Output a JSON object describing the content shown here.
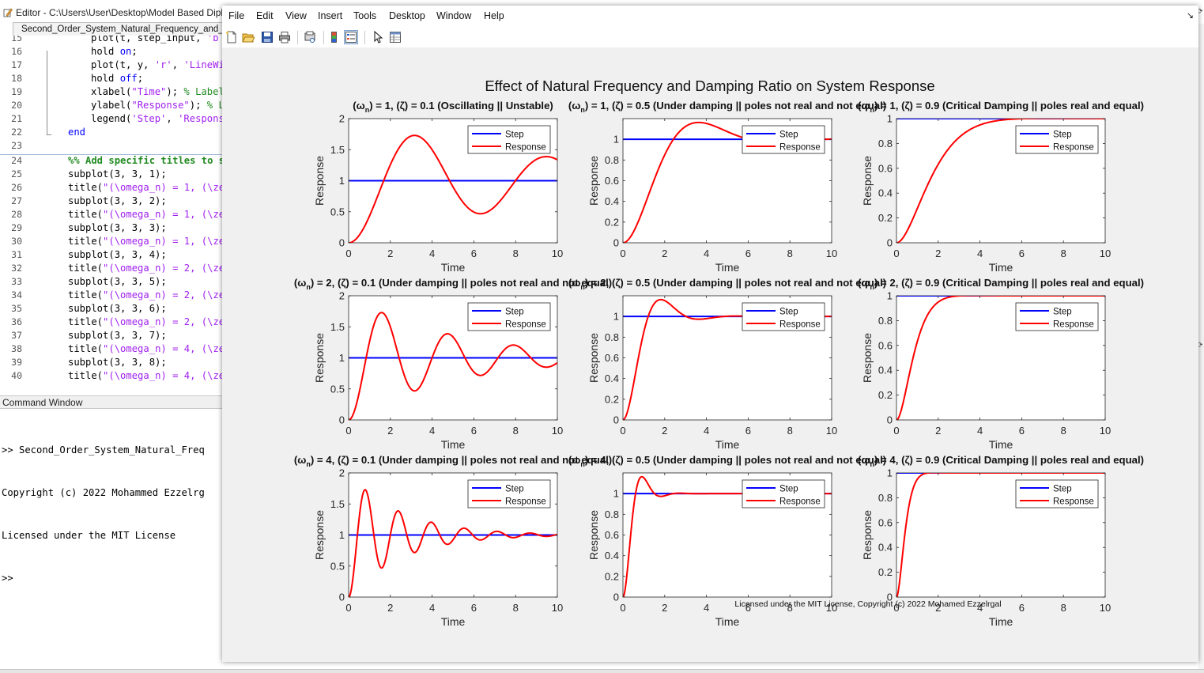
{
  "editor": {
    "title": "Editor - C:\\Users\\User\\Desktop\\Model Based Dipl",
    "tab": "Second_Order_System_Natural_Frequency_and_",
    "lines": [
      {
        "n": "15",
        "text": "plot(t, step_input, 'b"
      },
      {
        "n": "16",
        "text": "hold on;"
      },
      {
        "n": "17",
        "text": "plot(t, y, 'r', 'LineWi"
      },
      {
        "n": "18",
        "text": "hold off;"
      },
      {
        "n": "19",
        "text": "xlabel(\"Time\"); % Label"
      },
      {
        "n": "20",
        "text": "ylabel(\"Response\"); % L"
      },
      {
        "n": "21",
        "text": "legend('Step', 'Respons"
      },
      {
        "n": "22",
        "text": "end"
      },
      {
        "n": "23",
        "text": ""
      },
      {
        "n": "24",
        "text": "%% Add specific titles to s"
      },
      {
        "n": "25",
        "text": "subplot(3, 3, 1);"
      },
      {
        "n": "26",
        "text": "title(\"(\\omega_n) = 1, (\\ze"
      },
      {
        "n": "27",
        "text": "subplot(3, 3, 2);"
      },
      {
        "n": "28",
        "text": "title(\"(\\omega_n) = 1, (\\ze"
      },
      {
        "n": "29",
        "text": "subplot(3, 3, 3);"
      },
      {
        "n": "30",
        "text": "title(\"(\\omega_n) = 1, (\\ze"
      },
      {
        "n": "31",
        "text": "subplot(3, 3, 4);"
      },
      {
        "n": "32",
        "text": "title(\"(\\omega_n) = 2, (\\ze"
      },
      {
        "n": "33",
        "text": "subplot(3, 3, 5);"
      },
      {
        "n": "34",
        "text": "title(\"(\\omega_n) = 2, (\\ze"
      },
      {
        "n": "35",
        "text": "subplot(3, 3, 6);"
      },
      {
        "n": "36",
        "text": "title(\"(\\omega_n) = 2, (\\ze"
      },
      {
        "n": "37",
        "text": "subplot(3, 3, 7);"
      },
      {
        "n": "38",
        "text": "title(\"(\\omega_n) = 4, (\\ze"
      },
      {
        "n": "39",
        "text": "subplot(3, 3, 8);"
      },
      {
        "n": "40",
        "text": "title(\"(\\omega_n) = 4, (\\ze"
      }
    ],
    "command_window": {
      "header": "Command Window",
      "lines": [
        ">> Second_Order_System_Natural_Freq",
        "Copyright (c) 2022 Mohammed Ezzelrg",
        "Licensed under the MIT License",
        ">>"
      ]
    }
  },
  "figure": {
    "menu": [
      "File",
      "Edit",
      "View",
      "Insert",
      "Tools",
      "Desktop",
      "Window",
      "Help"
    ],
    "toolbar": [
      "new-figure-icon",
      "open-file-icon",
      "save-icon",
      "print-icon",
      "print-preview-icon",
      "colorbar-icon",
      "legend-icon",
      "pointer-icon",
      "property-inspector-icon"
    ],
    "suptitle": "Effect of Natural Frequency and Damping Ratio on System Response",
    "footer": "Licensed under the MIT License, Copyright (c) 2022 Mohamed Ezzelrgal",
    "colors": {
      "step": "#0000ff",
      "response": "#ff0000",
      "canvas": "#f0f0f0"
    }
  },
  "chart_data": [
    {
      "type": "line",
      "title": "(ω_n) = 1, (ζ) = 0.1 (Oscillating || Unstable)",
      "wn": 1,
      "zeta": 0.1,
      "xlabel": "Time",
      "ylabel": "Response",
      "xlim": [
        0,
        10
      ],
      "ylim": [
        0,
        2
      ],
      "xticks": [
        0,
        2,
        4,
        6,
        8,
        10
      ],
      "yticks": [
        "0",
        "0.5",
        "1",
        "1.5",
        "2"
      ],
      "legend": [
        "Step",
        "Response"
      ],
      "legend_position": "top-right"
    },
    {
      "type": "line",
      "title": "(ω_n) = 1, (ζ) = 0.5 (Under damping || poles not real and not equal)",
      "wn": 1,
      "zeta": 0.5,
      "xlabel": "Time",
      "ylabel": "Response",
      "xlim": [
        0,
        10
      ],
      "ylim": [
        0,
        1.2
      ],
      "xticks": [
        0,
        2,
        4,
        6,
        8,
        10
      ],
      "yticks": [
        "0",
        "0.2",
        "0.4",
        "0.6",
        "0.8",
        "1"
      ],
      "legend": [
        "Step",
        "Response"
      ],
      "legend_position": "top-right"
    },
    {
      "type": "line",
      "title": "(ω_n) = 1, (ζ) = 0.9 (Critical Damping || poles real and equal)",
      "wn": 1,
      "zeta": 0.9,
      "xlabel": "Time",
      "ylabel": "Response",
      "xlim": [
        0,
        10
      ],
      "ylim": [
        0,
        1
      ],
      "xticks": [
        0,
        2,
        4,
        6,
        8,
        10
      ],
      "yticks": [
        "0",
        "0.2",
        "0.4",
        "0.6",
        "0.8",
        "1"
      ],
      "legend": [
        "Step",
        "Response"
      ],
      "legend_position": "top-right"
    },
    {
      "type": "line",
      "title": "(ω_n) = 2, (ζ) = 0.1 (Under damping || poles not real and not equal)",
      "wn": 2,
      "zeta": 0.1,
      "xlabel": "Time",
      "ylabel": "Response",
      "xlim": [
        0,
        10
      ],
      "ylim": [
        0,
        2
      ],
      "xticks": [
        0,
        2,
        4,
        6,
        8,
        10
      ],
      "yticks": [
        "0",
        "0.5",
        "1",
        "1.5",
        "2"
      ],
      "legend": [
        "Step",
        "Response"
      ],
      "legend_position": "top-right"
    },
    {
      "type": "line",
      "title": "(ω_n) = 2, (ζ) = 0.5 (Under damping || poles not real and not equal)",
      "wn": 2,
      "zeta": 0.5,
      "xlabel": "Time",
      "ylabel": "Response",
      "xlim": [
        0,
        10
      ],
      "ylim": [
        0,
        1.2
      ],
      "xticks": [
        0,
        2,
        4,
        6,
        8,
        10
      ],
      "yticks": [
        "0",
        "0.2",
        "0.4",
        "0.6",
        "0.8",
        "1"
      ],
      "legend": [
        "Step",
        "Response"
      ],
      "legend_position": "top-right"
    },
    {
      "type": "line",
      "title": "(ω_n) = 2, (ζ) = 0.9 (Critical Damping || poles real and equal)",
      "wn": 2,
      "zeta": 0.9,
      "xlabel": "Time",
      "ylabel": "Response",
      "xlim": [
        0,
        10
      ],
      "ylim": [
        0,
        1
      ],
      "xticks": [
        0,
        2,
        4,
        6,
        8,
        10
      ],
      "yticks": [
        "0",
        "0.2",
        "0.4",
        "0.6",
        "0.8",
        "1"
      ],
      "legend": [
        "Step",
        "Response"
      ],
      "legend_position": "top-right"
    },
    {
      "type": "line",
      "title": "(ω_n) = 4, (ζ) = 0.1 (Under damping || poles not real and not equal)",
      "wn": 4,
      "zeta": 0.1,
      "xlabel": "Time",
      "ylabel": "Response",
      "xlim": [
        0,
        10
      ],
      "ylim": [
        0,
        2
      ],
      "xticks": [
        0,
        2,
        4,
        6,
        8,
        10
      ],
      "yticks": [
        "0",
        "0.5",
        "1",
        "1.5",
        "2"
      ],
      "legend": [
        "Step",
        "Response"
      ],
      "legend_position": "top-right"
    },
    {
      "type": "line",
      "title": "(ω_n) = 4, (ζ) = 0.5 (Under damping || poles not real and not equal)",
      "wn": 4,
      "zeta": 0.5,
      "xlabel": "Time",
      "ylabel": "Response",
      "xlim": [
        0,
        10
      ],
      "ylim": [
        0,
        1.2
      ],
      "xticks": [
        0,
        2,
        4,
        6,
        8,
        10
      ],
      "yticks": [
        "0",
        "0.2",
        "0.4",
        "0.6",
        "0.8",
        "1"
      ],
      "legend": [
        "Step",
        "Response"
      ],
      "legend_position": "top-right"
    },
    {
      "type": "line",
      "title": "(ω_n) = 4, (ζ) = 0.9 (Critical Damping || poles real and equal)",
      "wn": 4,
      "zeta": 0.9,
      "xlabel": "Time",
      "ylabel": "Response",
      "xlim": [
        0,
        10
      ],
      "ylim": [
        0,
        1
      ],
      "xticks": [
        0,
        2,
        4,
        6,
        8,
        10
      ],
      "yticks": [
        "0",
        "0.2",
        "0.4",
        "0.6",
        "0.8",
        "1"
      ],
      "legend": [
        "Step",
        "Response"
      ],
      "legend_position": "top-right"
    }
  ]
}
